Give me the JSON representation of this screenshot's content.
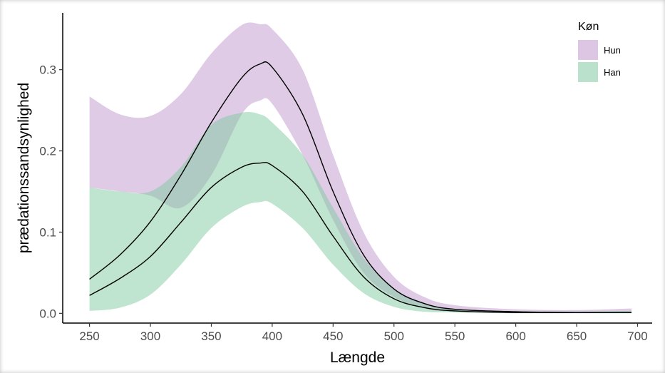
{
  "chart_data": {
    "type": "area",
    "xlabel": "Længde",
    "ylabel": "prædationssandsynlighed",
    "xlim": [
      228,
      712
    ],
    "ylim": [
      -0.012,
      0.37
    ],
    "x_ticks": [
      250,
      300,
      350,
      400,
      450,
      500,
      550,
      600,
      650,
      700
    ],
    "x_tick_labels": [
      "250",
      "300",
      "350",
      "400",
      "450",
      "500",
      "550",
      "600",
      "650",
      "700"
    ],
    "y_ticks": [
      0.0,
      0.1,
      0.2,
      0.3
    ],
    "y_tick_labels": [
      "0.0",
      "0.1",
      "0.2",
      "0.3"
    ],
    "grid": false,
    "legend": {
      "title": "Køn",
      "placement": "top-right",
      "entries": [
        "Hun",
        "Han"
      ]
    },
    "x": [
      250,
      275,
      300,
      325,
      350,
      375,
      390,
      400,
      425,
      450,
      475,
      500,
      525,
      550,
      600,
      650,
      695
    ],
    "series": [
      {
        "name": "Hun",
        "color": "#c9a8d4",
        "opacity": 0.6,
        "fit": [
          0.042,
          0.072,
          0.113,
          0.17,
          0.235,
          0.29,
          0.307,
          0.303,
          0.245,
          0.15,
          0.072,
          0.03,
          0.012,
          0.005,
          0.002,
          0.001,
          0.001
        ],
        "lower": [
          0.155,
          0.15,
          0.145,
          0.13,
          0.17,
          0.245,
          0.262,
          0.258,
          0.195,
          0.115,
          0.05,
          0.02,
          0.006,
          0.002,
          0.001,
          0.001,
          0.001
        ],
        "upper": [
          0.267,
          0.245,
          0.243,
          0.27,
          0.32,
          0.355,
          0.356,
          0.35,
          0.3,
          0.195,
          0.1,
          0.045,
          0.02,
          0.01,
          0.005,
          0.004,
          0.006
        ]
      },
      {
        "name": "Han",
        "color": "#7fc9a0",
        "opacity": 0.5,
        "fit": [
          0.022,
          0.043,
          0.07,
          0.112,
          0.155,
          0.18,
          0.185,
          0.182,
          0.15,
          0.095,
          0.045,
          0.018,
          0.007,
          0.003,
          0.001,
          0.001,
          0.001
        ],
        "lower": [
          0.003,
          0.007,
          0.023,
          0.06,
          0.105,
          0.131,
          0.137,
          0.135,
          0.105,
          0.06,
          0.025,
          0.008,
          0.002,
          0.001,
          0.0,
          0.0,
          0.0
        ],
        "upper": [
          0.155,
          0.15,
          0.15,
          0.18,
          0.232,
          0.247,
          0.245,
          0.235,
          0.195,
          0.13,
          0.068,
          0.03,
          0.012,
          0.005,
          0.002,
          0.002,
          0.003
        ]
      }
    ],
    "line_color": "#000000"
  }
}
